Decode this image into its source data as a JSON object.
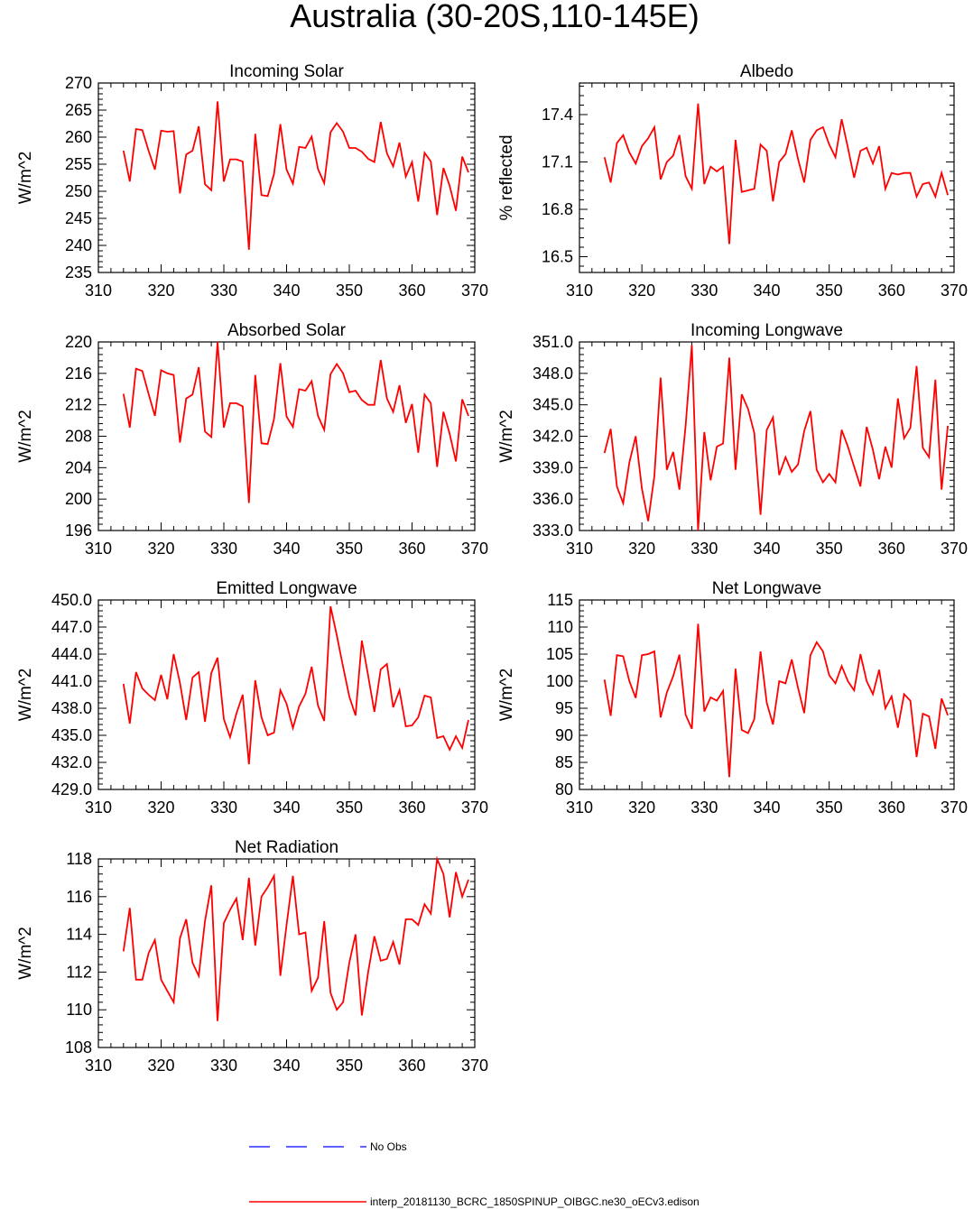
{
  "title": "Australia (30-20S,110-145E)",
  "chart_data": [
    {
      "type": "line",
      "title": "Incoming Solar",
      "ylabel": "W/m^2",
      "xlim": [
        310,
        370
      ],
      "ylim": [
        235,
        270
      ],
      "xticks": [
        "310",
        "320",
        "330",
        "340",
        "350",
        "360",
        "370"
      ],
      "yticks": [
        "235",
        "240",
        "245",
        "250",
        "255",
        "260",
        "265",
        "270"
      ],
      "series": [
        {
          "name": "interp_20181130_BCRC_1850SPINUP_OIBGC.ne30_oECv3.edison",
          "x": [
            314,
            315,
            316,
            317,
            318,
            319,
            320,
            321,
            322,
            323,
            324,
            325,
            326,
            327,
            328,
            329,
            330,
            331,
            332,
            333,
            334,
            335,
            336,
            337,
            338,
            339,
            340,
            341,
            342,
            343,
            344,
            345,
            346,
            347,
            348,
            349,
            350,
            351,
            352,
            353,
            354,
            355,
            356,
            357,
            358,
            359,
            360,
            361,
            362,
            363,
            364,
            365,
            366,
            367,
            368,
            369
          ],
          "y": [
            257.5,
            251.8,
            261.5,
            261.3,
            257.5,
            254.0,
            261.2,
            261.0,
            261.1,
            249.6,
            256.8,
            257.5,
            262.0,
            251.3,
            250.2,
            266.6,
            251.8,
            255.9,
            255.9,
            255.5,
            239.2,
            260.6,
            249.3,
            249.1,
            253.2,
            262.4,
            254.0,
            251.4,
            258.2,
            258.0,
            260.1,
            254.1,
            251.5,
            260.9,
            262.6,
            261.0,
            258.0,
            258.0,
            257.3,
            256.0,
            255.4,
            262.8,
            257.0,
            254.6,
            259.0,
            252.7,
            255.4,
            248.1,
            257.1,
            255.5,
            245.6,
            254.3,
            251.0,
            246.4,
            256.4,
            253.5
          ]
        }
      ]
    },
    {
      "type": "line",
      "title": "Albedo",
      "ylabel": "% reflected",
      "xlim": [
        310,
        370
      ],
      "ylim": [
        16.4,
        17.6
      ],
      "xticks": [
        "310",
        "320",
        "330",
        "340",
        "350",
        "360",
        "370"
      ],
      "yticks": [
        "16.5",
        "16.8",
        "17.1",
        "17.4"
      ],
      "series": [
        {
          "name": "interp_20181130_BCRC_1850SPINUP_OIBGC.ne30_oECv3.edison",
          "x": [
            314,
            315,
            316,
            317,
            318,
            319,
            320,
            321,
            322,
            323,
            324,
            325,
            326,
            327,
            328,
            329,
            330,
            331,
            332,
            333,
            334,
            335,
            336,
            337,
            338,
            339,
            340,
            341,
            342,
            343,
            344,
            345,
            346,
            347,
            348,
            349,
            350,
            351,
            352,
            353,
            354,
            355,
            356,
            357,
            358,
            359,
            360,
            361,
            362,
            363,
            364,
            365,
            366,
            367,
            368,
            369
          ],
          "y": [
            17.13,
            16.97,
            17.22,
            17.27,
            17.16,
            17.09,
            17.2,
            17.25,
            17.32,
            16.99,
            17.1,
            17.14,
            17.27,
            17.01,
            16.93,
            17.47,
            16.96,
            17.07,
            17.04,
            17.07,
            16.58,
            17.24,
            16.91,
            16.92,
            16.93,
            17.21,
            17.17,
            16.85,
            17.1,
            17.15,
            17.3,
            17.12,
            16.97,
            17.24,
            17.3,
            17.32,
            17.21,
            17.13,
            17.37,
            17.19,
            17.0,
            17.17,
            17.19,
            17.09,
            17.2,
            16.93,
            17.03,
            17.02,
            17.03,
            17.03,
            16.88,
            16.96,
            16.97,
            16.88,
            17.03,
            16.89
          ]
        }
      ]
    },
    {
      "type": "line",
      "title": "Absorbed Solar",
      "ylabel": "W/m^2",
      "xlim": [
        310,
        370
      ],
      "ylim": [
        196,
        220
      ],
      "xticks": [
        "310",
        "320",
        "330",
        "340",
        "350",
        "360",
        "370"
      ],
      "yticks": [
        "196",
        "200",
        "204",
        "208",
        "212",
        "216",
        "220"
      ],
      "series": [
        {
          "name": "interp_20181130_BCRC_1850SPINUP_OIBGC.ne30_oECv3.edison",
          "x": [
            314,
            315,
            316,
            317,
            318,
            319,
            320,
            321,
            322,
            323,
            324,
            325,
            326,
            327,
            328,
            329,
            330,
            331,
            332,
            333,
            334,
            335,
            336,
            337,
            338,
            339,
            340,
            341,
            342,
            343,
            344,
            345,
            346,
            347,
            348,
            349,
            350,
            351,
            352,
            353,
            354,
            355,
            356,
            357,
            358,
            359,
            360,
            361,
            362,
            363,
            364,
            365,
            366,
            367,
            368,
            369
          ],
          "y": [
            213.4,
            209.1,
            216.6,
            216.3,
            213.4,
            210.6,
            216.4,
            216.0,
            215.8,
            207.2,
            212.8,
            213.3,
            216.8,
            208.6,
            207.9,
            220.0,
            209.1,
            212.2,
            212.2,
            211.8,
            199.5,
            215.8,
            207.1,
            207.0,
            210.2,
            217.3,
            210.5,
            209.2,
            214.0,
            213.8,
            215.0,
            210.6,
            208.8,
            215.9,
            217.2,
            216.0,
            213.6,
            213.8,
            212.6,
            212.0,
            212.0,
            217.7,
            212.8,
            211.1,
            214.5,
            209.7,
            212.1,
            205.9,
            213.3,
            212.2,
            204.1,
            211.1,
            208.3,
            204.8,
            212.7,
            210.6
          ]
        }
      ]
    },
    {
      "type": "line",
      "title": "Incoming Longwave",
      "ylabel": "W/m^2",
      "xlim": [
        310,
        370
      ],
      "ylim": [
        333,
        351
      ],
      "xticks": [
        "310",
        "320",
        "330",
        "340",
        "350",
        "360",
        "370"
      ],
      "yticks": [
        "333.0",
        "336.0",
        "339.0",
        "342.0",
        "345.0",
        "348.0",
        "351.0"
      ],
      "series": [
        {
          "name": "interp_20181130_BCRC_1850SPINUP_OIBGC.ne30_oECv3.edison",
          "x": [
            314,
            315,
            316,
            317,
            318,
            319,
            320,
            321,
            322,
            323,
            324,
            325,
            326,
            327,
            328,
            329,
            330,
            331,
            332,
            333,
            334,
            335,
            336,
            337,
            338,
            339,
            340,
            341,
            342,
            343,
            344,
            345,
            346,
            347,
            348,
            349,
            350,
            351,
            352,
            353,
            354,
            355,
            356,
            357,
            358,
            359,
            360,
            361,
            362,
            363,
            364,
            365,
            366,
            367,
            368,
            369
          ],
          "y": [
            340.4,
            342.7,
            337.2,
            335.6,
            339.5,
            342.0,
            337.0,
            333.9,
            338.2,
            347.6,
            338.8,
            340.5,
            336.9,
            343.0,
            350.7,
            333.0,
            342.4,
            337.8,
            341.0,
            341.3,
            349.5,
            338.8,
            346.0,
            344.6,
            342.3,
            334.5,
            342.6,
            343.8,
            338.3,
            340.0,
            338.6,
            339.3,
            342.5,
            344.4,
            338.8,
            337.6,
            338.4,
            337.6,
            342.6,
            341.0,
            339.1,
            337.2,
            342.9,
            340.7,
            337.9,
            341.0,
            339.0,
            345.6,
            341.8,
            342.8,
            348.7,
            340.9,
            340.0,
            347.4,
            336.9,
            343.0
          ]
        }
      ]
    },
    {
      "type": "line",
      "title": "Emitted Longwave",
      "ylabel": "W/m^2",
      "xlim": [
        310,
        370
      ],
      "ylim": [
        429,
        450
      ],
      "xticks": [
        "310",
        "320",
        "330",
        "340",
        "350",
        "360",
        "370"
      ],
      "yticks": [
        "429.0",
        "432.0",
        "435.0",
        "438.0",
        "441.0",
        "444.0",
        "447.0",
        "450.0"
      ],
      "series": [
        {
          "name": "interp_20181130_BCRC_1850SPINUP_OIBGC.ne30_oECv3.edison",
          "x": [
            314,
            315,
            316,
            317,
            318,
            319,
            320,
            321,
            322,
            323,
            324,
            325,
            326,
            327,
            328,
            329,
            330,
            331,
            332,
            333,
            334,
            335,
            336,
            337,
            338,
            339,
            340,
            341,
            342,
            343,
            344,
            345,
            346,
            347,
            348,
            349,
            350,
            351,
            352,
            353,
            354,
            355,
            356,
            357,
            358,
            359,
            360,
            361,
            362,
            363,
            364,
            365,
            366,
            367,
            368,
            369
          ],
          "y": [
            440.7,
            436.3,
            442.0,
            440.2,
            439.5,
            438.9,
            441.7,
            439.0,
            444.0,
            440.8,
            436.7,
            441.4,
            442.0,
            436.5,
            441.9,
            443.6,
            436.8,
            434.8,
            437.4,
            439.5,
            431.8,
            441.1,
            437.0,
            435.0,
            435.3,
            440.0,
            438.5,
            435.8,
            438.2,
            439.6,
            442.6,
            438.3,
            436.6,
            449.3,
            446.1,
            442.6,
            439.3,
            437.2,
            445.5,
            441.6,
            437.6,
            442.3,
            442.9,
            438.1,
            440.0,
            436.0,
            436.1,
            437.0,
            439.4,
            439.2,
            434.7,
            434.9,
            433.4,
            434.9,
            433.6,
            436.7
          ]
        }
      ]
    },
    {
      "type": "line",
      "title": "Net Longwave",
      "ylabel": "W/m^2",
      "xlim": [
        310,
        370
      ],
      "ylim": [
        80,
        115
      ],
      "xticks": [
        "310",
        "320",
        "330",
        "340",
        "350",
        "360",
        "370"
      ],
      "yticks": [
        "80",
        "85",
        "90",
        "95",
        "100",
        "105",
        "110",
        "115"
      ],
      "series": [
        {
          "name": "interp_20181130_BCRC_1850SPINUP_OIBGC.ne30_oECv3.edison",
          "x": [
            314,
            315,
            316,
            317,
            318,
            319,
            320,
            321,
            322,
            323,
            324,
            325,
            326,
            327,
            328,
            329,
            330,
            331,
            332,
            333,
            334,
            335,
            336,
            337,
            338,
            339,
            340,
            341,
            342,
            343,
            344,
            345,
            346,
            347,
            348,
            349,
            350,
            351,
            352,
            353,
            354,
            355,
            356,
            357,
            358,
            359,
            360,
            361,
            362,
            363,
            364,
            365,
            366,
            367,
            368,
            369
          ],
          "y": [
            100.3,
            93.6,
            104.8,
            104.6,
            100.0,
            96.9,
            104.8,
            105.0,
            105.5,
            93.3,
            97.9,
            100.9,
            104.9,
            93.8,
            91.2,
            110.6,
            94.4,
            97.0,
            96.4,
            98.2,
            82.3,
            102.3,
            91.0,
            90.4,
            93.0,
            105.5,
            96.0,
            92.0,
            100.0,
            99.6,
            104.0,
            98.8,
            94.1,
            104.8,
            107.2,
            105.5,
            101.1,
            99.6,
            102.8,
            100.0,
            98.3,
            105.0,
            100.0,
            97.6,
            102.1,
            95.0,
            97.2,
            91.4,
            97.6,
            96.4,
            86.0,
            94.0,
            93.5,
            87.5,
            96.8,
            93.7
          ]
        }
      ]
    },
    {
      "type": "line",
      "title": "Net Radiation",
      "ylabel": "W/m^2",
      "xlim": [
        310,
        370
      ],
      "ylim": [
        108,
        118
      ],
      "xticks": [
        "310",
        "320",
        "330",
        "340",
        "350",
        "360",
        "370"
      ],
      "yticks": [
        "108",
        "110",
        "112",
        "114",
        "116",
        "118"
      ],
      "series": [
        {
          "name": "interp_20181130_BCRC_1850SPINUP_OIBGC.ne30_oECv3.edison",
          "x": [
            314,
            315,
            316,
            317,
            318,
            319,
            320,
            321,
            322,
            323,
            324,
            325,
            326,
            327,
            328,
            329,
            330,
            331,
            332,
            333,
            334,
            335,
            336,
            337,
            338,
            339,
            340,
            341,
            342,
            343,
            344,
            345,
            346,
            347,
            348,
            349,
            350,
            351,
            352,
            353,
            354,
            355,
            356,
            357,
            358,
            359,
            360,
            361,
            362,
            363,
            364,
            365,
            366,
            367,
            368,
            369
          ],
          "y": [
            113.1,
            115.4,
            111.6,
            111.6,
            113.0,
            113.7,
            111.6,
            111.0,
            110.4,
            113.8,
            114.8,
            112.5,
            111.8,
            114.7,
            116.6,
            109.4,
            114.6,
            115.3,
            115.9,
            113.7,
            117.0,
            113.4,
            116.0,
            116.5,
            117.1,
            111.8,
            114.5,
            117.1,
            114.0,
            114.1,
            111.0,
            111.7,
            114.7,
            110.9,
            110.0,
            110.4,
            112.5,
            114.0,
            109.7,
            112.0,
            113.9,
            112.6,
            112.7,
            113.6,
            112.4,
            114.8,
            114.8,
            114.5,
            115.6,
            115.1,
            118.0,
            117.2,
            114.9,
            117.3,
            116.0,
            116.9
          ]
        }
      ]
    }
  ],
  "legend": {
    "obs_label": "No Obs",
    "obs_color": "#0000ff",
    "model_label": "interp_20181130_BCRC_1850SPINUP_OIBGC.ne30_oECv3.edison",
    "model_color": "#ff0000"
  }
}
